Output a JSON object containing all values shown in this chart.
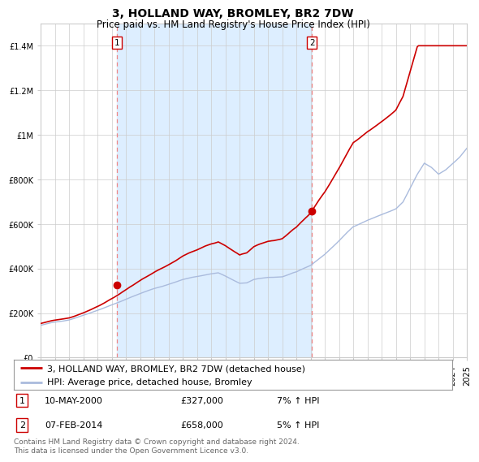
{
  "title": "3, HOLLAND WAY, BROMLEY, BR2 7DW",
  "subtitle": "Price paid vs. HM Land Registry's House Price Index (HPI)",
  "x_start_year": 1995,
  "x_end_year": 2025,
  "ylim": [
    0,
    1500000
  ],
  "yticks": [
    0,
    200000,
    400000,
    600000,
    800000,
    1000000,
    1200000,
    1400000
  ],
  "ytick_labels": [
    "£0",
    "£200K",
    "£400K",
    "£600K",
    "£800K",
    "£1M",
    "£1.2M",
    "£1.4M"
  ],
  "marker1_year": 2000.37,
  "marker1_value": 327000,
  "marker2_year": 2014.09,
  "marker2_value": 658000,
  "shade_color": "#ddeeff",
  "hpi_color": "#aabbdd",
  "price_color": "#cc0000",
  "vline_color": "#ee8888",
  "grid_color": "#cccccc",
  "background_color": "#ffffff",
  "legend_line1": "3, HOLLAND WAY, BROMLEY, BR2 7DW (detached house)",
  "legend_line2": "HPI: Average price, detached house, Bromley",
  "ann1_date": "10-MAY-2000",
  "ann1_price": "£327,000",
  "ann1_hpi": "7% ↑ HPI",
  "ann2_date": "07-FEB-2014",
  "ann2_price": "£658,000",
  "ann2_hpi": "5% ↑ HPI",
  "footer": "Contains HM Land Registry data © Crown copyright and database right 2024.\nThis data is licensed under the Open Government Licence v3.0.",
  "title_fontsize": 10,
  "subtitle_fontsize": 8.5,
  "tick_fontsize": 7,
  "legend_fontsize": 8,
  "ann_fontsize": 8,
  "footer_fontsize": 6.5
}
